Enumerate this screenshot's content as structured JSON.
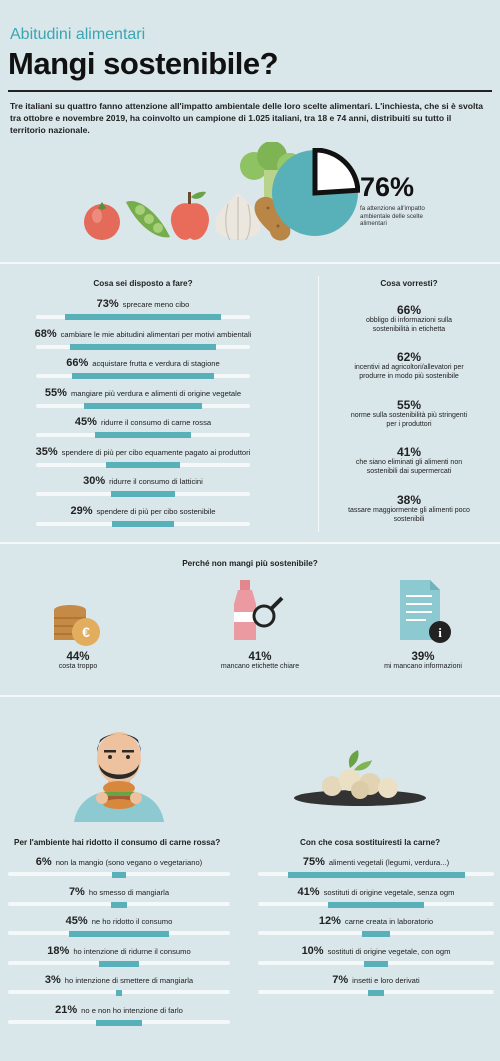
{
  "header": {
    "kicker": "Abitudini alimentari",
    "title": "Mangi sostenibile?",
    "intro": "Tre italiani su quattro fanno attenzione all'impatto ambientale delle loro scelte alimentari. L'inchiesta, che si è svolta tra ottobre e novembre 2019, ha coinvolto un campione di 1.025 italiani, tra 18 e 74 anni, distribuiti su tutto il territorio nazionale."
  },
  "headline_stat": {
    "value": "76%",
    "label": "fa attenzione all'impatto ambientale delle scelte alimentari"
  },
  "sections": {
    "disposto_title": "Cosa sei disposto a fare?",
    "vorresti_title": "Cosa vorresti?",
    "perche_title": "Perché non mangi più sostenibile?",
    "ridotto_title": "Per l'ambiente hai ridotto il consumo di carne rossa?",
    "sostituiresti_title": "Con che cosa sostituiresti la carne?"
  },
  "colors": {
    "accent": "#58b0b9",
    "bg": "#d9e6ea",
    "track": "#f4f8f9",
    "title_accent": "#3aa6b2"
  },
  "chart_data": [
    {
      "type": "pie",
      "title": "",
      "values": [
        76,
        24
      ],
      "labels": [
        "fa attenzione all'impatto ambientale delle scelte alimentari",
        ""
      ]
    },
    {
      "type": "bar",
      "title": "Cosa sei disposto a fare?",
      "categories": [
        "sprecare meno cibo",
        "cambiare le mie abitudini alimentari per motivi ambientali",
        "acquistare frutta e verdura di stagione",
        "mangiare più verdura e alimenti di origine vegetale",
        "ridurre il consumo di carne rossa",
        "spendere di più per cibo equamente pagato ai produttori",
        "ridurre il consumo di latticini",
        "spendere di più per cibo sostenibile"
      ],
      "values": [
        73,
        68,
        66,
        55,
        45,
        35,
        30,
        29
      ],
      "value_labels": [
        "73%",
        "68%",
        "66%",
        "55%",
        "45%",
        "35%",
        "30%",
        "29%"
      ],
      "ylim": [
        0,
        100
      ]
    },
    {
      "type": "table",
      "title": "Cosa vorresti?",
      "categories": [
        "obbligo di informazioni sulla sostenibilità in etichetta",
        "incentivi ad agricoltori/allevatori per produrre in modo più sostenibile",
        "norme sulla sostenibilità più stringenti per i produttori",
        "che siano eliminati gli alimenti non sostenibili dai supermercati",
        "tassare maggiormente gli alimenti poco sostenibili"
      ],
      "values": [
        66,
        62,
        55,
        41,
        38
      ],
      "value_labels": [
        "66%",
        "62%",
        "55%",
        "41%",
        "38%"
      ]
    },
    {
      "type": "table",
      "title": "Perché non mangi più sostenibile?",
      "categories": [
        "costa troppo",
        "mancano etichette chiare",
        "mi mancano informazioni"
      ],
      "values": [
        44,
        41,
        39
      ],
      "value_labels": [
        "44%",
        "41%",
        "39%"
      ],
      "icons": [
        "coins-euro-icon",
        "bottle-magnifier-icon",
        "document-info-icon"
      ]
    },
    {
      "type": "bar",
      "title": "Per l'ambiente hai ridotto il consumo di carne rossa?",
      "categories": [
        "non la mangio (sono vegano o vegetariano)",
        "ho smesso di mangiarla",
        "ne ho ridotto il consumo",
        "ho intenzione di ridurne il consumo",
        "ho intenzione di smettere di mangiarla",
        "no e non ho intenzione di farlo"
      ],
      "values": [
        6,
        7,
        45,
        18,
        3,
        21
      ],
      "value_labels": [
        "6%",
        "7%",
        "45%",
        "18%",
        "3%",
        "21%"
      ],
      "ylim": [
        0,
        100
      ]
    },
    {
      "type": "bar",
      "title": "Con che cosa sostituiresti la carne?",
      "categories": [
        "alimenti vegetali (legumi, verdura...)",
        "sostituti di origine vegetale, senza ogm",
        "carne creata in laboratorio",
        "sostituti di origine vegetale, con ogm",
        "insetti e loro derivati"
      ],
      "values": [
        75,
        41,
        12,
        10,
        7
      ],
      "value_labels": [
        "75%",
        "41%",
        "12%",
        "10%",
        "7%"
      ],
      "ylim": [
        0,
        100
      ]
    }
  ]
}
